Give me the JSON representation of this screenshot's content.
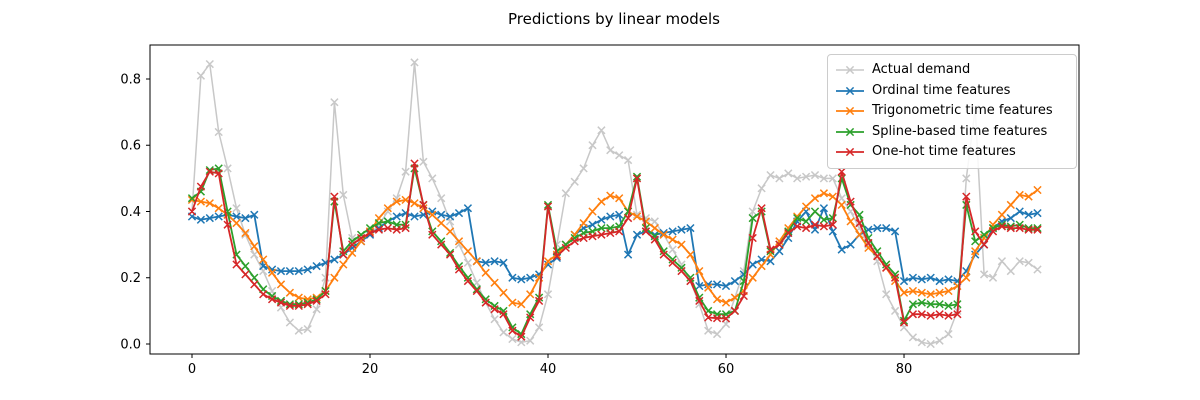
{
  "chart_data": {
    "type": "line",
    "title": "Predictions by linear models",
    "marker": "x",
    "grid": false,
    "legend_position": "upper right",
    "x_start": 0,
    "x_step": 1,
    "xlim": [
      -4.72,
      99.66
    ],
    "ylim": [
      -0.0302,
      0.9026
    ],
    "x_ticks": [
      0,
      20,
      40,
      60,
      80
    ],
    "x_tick_labels": [
      "0",
      "20",
      "40",
      "60",
      "80"
    ],
    "y_ticks": [
      0.0,
      0.2,
      0.4,
      0.6,
      0.8
    ],
    "y_tick_labels": [
      "0.0",
      "0.2",
      "0.4",
      "0.6",
      "0.8"
    ],
    "series": [
      {
        "name": "Actual demand",
        "color": "#c8c8c8",
        "line_width": 1.5,
        "values": [
          0.4,
          0.81,
          0.845,
          0.64,
          0.53,
          0.41,
          0.33,
          0.27,
          0.22,
          0.16,
          0.11,
          0.065,
          0.04,
          0.045,
          0.105,
          0.2,
          0.73,
          0.45,
          0.32,
          0.31,
          0.33,
          0.36,
          0.4,
          0.44,
          0.52,
          0.85,
          0.55,
          0.5,
          0.44,
          0.37,
          0.3,
          0.245,
          0.185,
          0.125,
          0.075,
          0.035,
          0.015,
          0.005,
          0.01,
          0.05,
          0.15,
          0.3,
          0.455,
          0.49,
          0.53,
          0.6,
          0.645,
          0.585,
          0.57,
          0.555,
          0.39,
          0.38,
          0.37,
          0.33,
          0.285,
          0.24,
          0.19,
          0.12,
          0.04,
          0.03,
          0.06,
          0.14,
          0.22,
          0.4,
          0.47,
          0.51,
          0.5,
          0.515,
          0.5,
          0.505,
          0.51,
          0.5,
          0.5,
          0.44,
          0.4,
          0.35,
          0.3,
          0.25,
          0.15,
          0.1,
          0.05,
          0.02,
          0.005,
          0.0,
          0.01,
          0.03,
          0.1,
          0.5,
          0.71,
          0.21,
          0.2,
          0.25,
          0.22,
          0.25,
          0.245,
          0.225
        ]
      },
      {
        "name": "Ordinal time features",
        "color": "#1f77b4",
        "line_width": 1.8,
        "values": [
          0.385,
          0.375,
          0.38,
          0.385,
          0.39,
          0.385,
          0.38,
          0.39,
          0.235,
          0.225,
          0.22,
          0.22,
          0.22,
          0.225,
          0.235,
          0.245,
          0.255,
          0.27,
          0.29,
          0.31,
          0.33,
          0.35,
          0.37,
          0.385,
          0.395,
          0.385,
          0.39,
          0.4,
          0.39,
          0.385,
          0.395,
          0.41,
          0.25,
          0.245,
          0.25,
          0.245,
          0.2,
          0.195,
          0.2,
          0.21,
          0.24,
          0.26,
          0.3,
          0.33,
          0.35,
          0.36,
          0.375,
          0.385,
          0.39,
          0.27,
          0.33,
          0.34,
          0.33,
          0.335,
          0.34,
          0.345,
          0.35,
          0.175,
          0.18,
          0.18,
          0.175,
          0.19,
          0.21,
          0.24,
          0.255,
          0.25,
          0.28,
          0.32,
          0.37,
          0.4,
          0.345,
          0.41,
          0.34,
          0.285,
          0.3,
          0.33,
          0.345,
          0.35,
          0.35,
          0.34,
          0.19,
          0.2,
          0.195,
          0.2,
          0.19,
          0.195,
          0.19,
          0.22,
          0.27,
          0.3,
          0.35,
          0.37,
          0.38,
          0.4,
          0.39,
          0.395
        ]
      },
      {
        "name": "Trigonometric time features",
        "color": "#ff7f0e",
        "line_width": 1.8,
        "values": [
          0.435,
          0.43,
          0.425,
          0.41,
          0.39,
          0.365,
          0.335,
          0.295,
          0.255,
          0.215,
          0.18,
          0.155,
          0.14,
          0.135,
          0.14,
          0.16,
          0.2,
          0.24,
          0.275,
          0.31,
          0.34,
          0.38,
          0.41,
          0.43,
          0.435,
          0.425,
          0.41,
          0.39,
          0.365,
          0.34,
          0.31,
          0.28,
          0.25,
          0.215,
          0.185,
          0.155,
          0.125,
          0.12,
          0.15,
          0.2,
          0.25,
          0.27,
          0.3,
          0.33,
          0.365,
          0.4,
          0.43,
          0.448,
          0.44,
          0.4,
          0.385,
          0.37,
          0.35,
          0.33,
          0.315,
          0.3,
          0.27,
          0.22,
          0.17,
          0.135,
          0.125,
          0.14,
          0.16,
          0.2,
          0.235,
          0.27,
          0.31,
          0.35,
          0.385,
          0.415,
          0.44,
          0.455,
          0.445,
          0.42,
          0.37,
          0.33,
          0.29,
          0.265,
          0.23,
          0.19,
          0.155,
          0.16,
          0.155,
          0.15,
          0.155,
          0.16,
          0.175,
          0.2,
          0.28,
          0.32,
          0.36,
          0.39,
          0.42,
          0.45,
          0.445,
          0.465
        ]
      },
      {
        "name": "Spline-based time features",
        "color": "#2ca02c",
        "line_width": 1.8,
        "values": [
          0.44,
          0.46,
          0.525,
          0.53,
          0.4,
          0.27,
          0.235,
          0.2,
          0.165,
          0.145,
          0.13,
          0.12,
          0.12,
          0.125,
          0.135,
          0.16,
          0.43,
          0.28,
          0.31,
          0.33,
          0.35,
          0.365,
          0.37,
          0.36,
          0.36,
          0.53,
          0.42,
          0.34,
          0.31,
          0.275,
          0.235,
          0.2,
          0.165,
          0.135,
          0.115,
          0.1,
          0.05,
          0.03,
          0.09,
          0.14,
          0.42,
          0.28,
          0.3,
          0.32,
          0.335,
          0.34,
          0.35,
          0.35,
          0.355,
          0.4,
          0.505,
          0.35,
          0.325,
          0.28,
          0.255,
          0.23,
          0.2,
          0.14,
          0.1,
          0.09,
          0.09,
          0.1,
          0.19,
          0.38,
          0.4,
          0.28,
          0.3,
          0.34,
          0.38,
          0.37,
          0.4,
          0.375,
          0.38,
          0.5,
          0.42,
          0.39,
          0.32,
          0.28,
          0.24,
          0.21,
          0.07,
          0.12,
          0.125,
          0.12,
          0.12,
          0.115,
          0.12,
          0.42,
          0.31,
          0.33,
          0.35,
          0.36,
          0.355,
          0.36,
          0.35,
          0.35
        ]
      },
      {
        "name": "One-hot time features",
        "color": "#d62728",
        "line_width": 1.8,
        "values": [
          0.4,
          0.475,
          0.52,
          0.515,
          0.36,
          0.24,
          0.21,
          0.18,
          0.15,
          0.135,
          0.125,
          0.115,
          0.115,
          0.12,
          0.13,
          0.15,
          0.445,
          0.27,
          0.3,
          0.32,
          0.335,
          0.345,
          0.35,
          0.345,
          0.35,
          0.545,
          0.42,
          0.33,
          0.3,
          0.27,
          0.225,
          0.19,
          0.16,
          0.125,
          0.105,
          0.09,
          0.04,
          0.022,
          0.08,
          0.13,
          0.415,
          0.265,
          0.29,
          0.31,
          0.32,
          0.325,
          0.33,
          0.335,
          0.34,
          0.38,
          0.5,
          0.34,
          0.315,
          0.27,
          0.245,
          0.22,
          0.19,
          0.13,
          0.08,
          0.078,
          0.077,
          0.1,
          0.145,
          0.32,
          0.41,
          0.285,
          0.3,
          0.335,
          0.355,
          0.35,
          0.36,
          0.355,
          0.36,
          0.52,
          0.43,
          0.365,
          0.305,
          0.265,
          0.23,
          0.2,
          0.065,
          0.09,
          0.09,
          0.085,
          0.09,
          0.085,
          0.09,
          0.445,
          0.34,
          0.3,
          0.34,
          0.355,
          0.35,
          0.35,
          0.345,
          0.345
        ]
      }
    ]
  }
}
